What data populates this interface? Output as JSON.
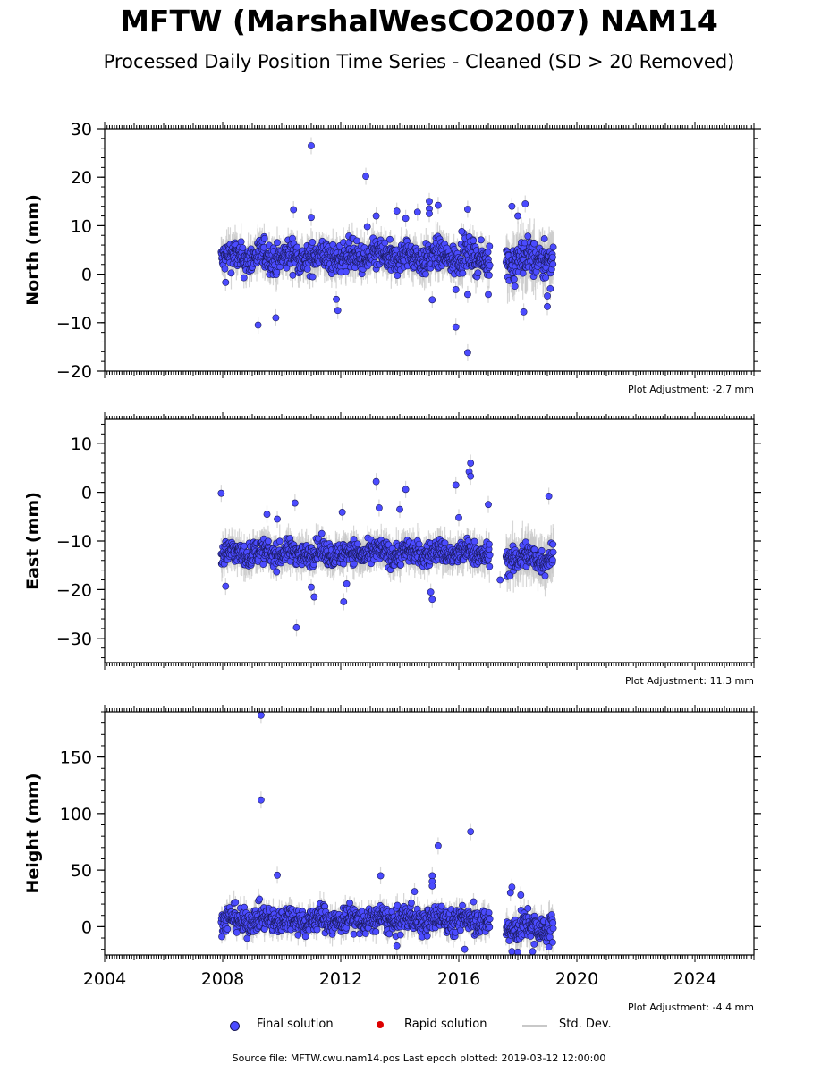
{
  "title": "MFTW (MarshalWesCO2007) NAM14",
  "subtitle": "Processed Daily Position Time Series - Cleaned (SD > 20 Removed)",
  "colors": {
    "final": "#4b4bff",
    "final_edge": "#1a1a5a",
    "rapid": "#dd0000",
    "stddev": "#c8c8c8"
  },
  "legend": {
    "final": "Final solution",
    "rapid": "Rapid solution",
    "stddev": "Std. Dev."
  },
  "footer": "Source file: MFTW.cwu.nam14.pos  Last epoch plotted: 2019-03-12 12:00:00",
  "chart_data": [
    {
      "type": "scatter",
      "ylabel": "North (mm)",
      "adjustment": "Plot Adjustment: -2.7 mm",
      "xlim": [
        2004,
        2026
      ],
      "ylim": [
        -20,
        30
      ],
      "xticks": [
        2004,
        2008,
        2012,
        2016,
        2020,
        2024
      ],
      "yticks": [
        -20,
        -10,
        0,
        10,
        20,
        30
      ],
      "ytick_labels": [
        "−20",
        "−10",
        "0",
        "10",
        "20",
        "30"
      ],
      "show_xtick_labels": false,
      "segments": [
        {
          "start": 2007.95,
          "end": 2017.05,
          "center": 3.5,
          "spread": 2.2,
          "err": 3.0
        },
        {
          "start": 2017.6,
          "end": 2019.2,
          "center": 3.0,
          "spread": 2.6,
          "err": 4.5
        }
      ],
      "outliers": [
        [
          2011.0,
          26.5
        ],
        [
          2012.85,
          20.2
        ],
        [
          2015.0,
          15.0
        ],
        [
          2015.0,
          13.5
        ],
        [
          2015.3,
          14.2
        ],
        [
          2016.3,
          13.4
        ],
        [
          2017.8,
          14.0
        ],
        [
          2018.25,
          14.5
        ],
        [
          2010.4,
          13.3
        ],
        [
          2013.2,
          12.0
        ],
        [
          2012.9,
          9.8
        ],
        [
          2013.9,
          13.0
        ],
        [
          2014.6,
          12.8
        ],
        [
          2009.2,
          -10.5
        ],
        [
          2009.8,
          -9.0
        ],
        [
          2011.9,
          -7.5
        ],
        [
          2011.85,
          -5.2
        ],
        [
          2015.1,
          -5.3
        ],
        [
          2015.9,
          -10.9
        ],
        [
          2016.3,
          -16.2
        ],
        [
          2016.3,
          -4.2
        ],
        [
          2017.9,
          -2.5
        ],
        [
          2018.2,
          -7.8
        ],
        [
          2019.0,
          -6.7
        ],
        [
          2019.0,
          -4.5
        ],
        [
          2019.1,
          -3.0
        ],
        [
          2008.1,
          -1.7
        ],
        [
          2017.0,
          -4.2
        ],
        [
          2016.1,
          8.8
        ],
        [
          2011.0,
          11.7
        ],
        [
          2014.2,
          11.5
        ],
        [
          2015.0,
          12.5
        ],
        [
          2018.0,
          12.0
        ],
        [
          2018.9,
          7.3
        ],
        [
          2015.9,
          -3.2
        ]
      ]
    },
    {
      "type": "scatter",
      "ylabel": "East (mm)",
      "adjustment": "Plot Adjustment: 11.3 mm",
      "xlim": [
        2004,
        2026
      ],
      "ylim": [
        -35,
        15
      ],
      "xticks": [
        2004,
        2008,
        2012,
        2016,
        2020,
        2024
      ],
      "yticks": [
        -30,
        -20,
        -10,
        0,
        10
      ],
      "ytick_labels": [
        "−30",
        "−20",
        "−10",
        "0",
        "10"
      ],
      "show_xtick_labels": false,
      "segments": [
        {
          "start": 2007.95,
          "end": 2017.05,
          "center": -12.5,
          "spread": 1.7,
          "err": 2.8
        },
        {
          "start": 2017.6,
          "end": 2019.2,
          "center": -13.5,
          "spread": 2.0,
          "err": 4.0
        }
      ],
      "outliers": [
        [
          2007.95,
          -0.2
        ],
        [
          2013.2,
          2.2
        ],
        [
          2014.2,
          0.6
        ],
        [
          2016.4,
          6.0
        ],
        [
          2016.35,
          4.2
        ],
        [
          2016.4,
          3.3
        ],
        [
          2015.9,
          1.5
        ],
        [
          2017.0,
          -2.5
        ],
        [
          2019.05,
          -0.8
        ],
        [
          2010.5,
          -27.8
        ],
        [
          2012.1,
          -22.5
        ],
        [
          2015.1,
          -22.0
        ],
        [
          2011.1,
          -21.5
        ],
        [
          2012.2,
          -18.8
        ],
        [
          2011.0,
          -19.5
        ],
        [
          2008.1,
          -19.3
        ],
        [
          2014.0,
          -3.5
        ],
        [
          2010.45,
          -2.2
        ],
        [
          2013.3,
          -3.2
        ],
        [
          2009.5,
          -4.5
        ],
        [
          2009.85,
          -5.5
        ],
        [
          2012.05,
          -4.1
        ],
        [
          2016.0,
          -5.2
        ],
        [
          2015.05,
          -20.5
        ],
        [
          2017.4,
          -18.0
        ]
      ]
    },
    {
      "type": "scatter",
      "ylabel": "Height (mm)",
      "adjustment": "Plot Adjustment: -4.4 mm",
      "xlim": [
        2004,
        2026
      ],
      "ylim": [
        -25,
        190
      ],
      "xticks": [
        2004,
        2008,
        2012,
        2016,
        2020,
        2024
      ],
      "xtick_labels": [
        "2004",
        "2008",
        "2012",
        "2016",
        "2020",
        "2024"
      ],
      "yticks": [
        0,
        50,
        100,
        150
      ],
      "ytick_labels": [
        "0",
        "50",
        "100",
        "150"
      ],
      "show_xtick_labels": true,
      "segments": [
        {
          "start": 2007.95,
          "end": 2017.05,
          "center": 6.0,
          "spread": 8.0,
          "err": 9.0
        },
        {
          "start": 2017.6,
          "end": 2019.2,
          "center": -1.0,
          "spread": 9.0,
          "err": 11.0
        }
      ],
      "outliers": [
        [
          2009.3,
          187.0
        ],
        [
          2009.3,
          112.0
        ],
        [
          2016.4,
          84.0
        ],
        [
          2015.3,
          71.5
        ],
        [
          2013.35,
          45.0
        ],
        [
          2009.85,
          45.5
        ],
        [
          2015.1,
          45.0
        ],
        [
          2015.1,
          40.0
        ],
        [
          2015.1,
          36.0
        ],
        [
          2014.5,
          31.0
        ],
        [
          2017.8,
          35.0
        ],
        [
          2017.75,
          30.0
        ],
        [
          2018.1,
          28.0
        ],
        [
          2016.2,
          -20.0
        ],
        [
          2017.8,
          -22.0
        ],
        [
          2018.0,
          -22.5
        ],
        [
          2018.5,
          -22.0
        ],
        [
          2019.05,
          -18.0
        ],
        [
          2013.9,
          -17.0
        ],
        [
          2016.5,
          22.0
        ]
      ]
    }
  ]
}
